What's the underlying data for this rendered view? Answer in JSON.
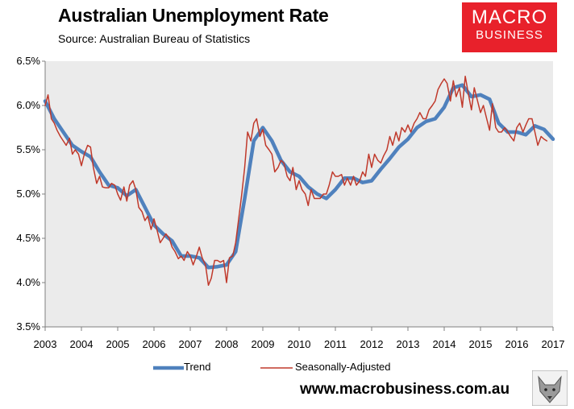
{
  "header": {
    "title": "Australian Unemployment Rate",
    "subtitle": "Source: Australian Bureau of Statistics"
  },
  "logo": {
    "line1": "MACRO",
    "line2": "BUSINESS",
    "color": "#e8212b"
  },
  "footer": {
    "website": "www.macrobusiness.com.au"
  },
  "chart_data": {
    "type": "line",
    "ylim": [
      3.5,
      6.5
    ],
    "xlim": [
      2003.0,
      2017.0
    ],
    "y_ticks": [
      "3.5%",
      "4.0%",
      "4.5%",
      "5.0%",
      "5.5%",
      "6.0%",
      "6.5%"
    ],
    "x_ticks": [
      "2003",
      "2004",
      "2005",
      "2006",
      "2007",
      "2008",
      "2009",
      "2010",
      "2011",
      "2012",
      "2013",
      "2014",
      "2015",
      "2016",
      "2017"
    ],
    "grid": false,
    "plot_background": "#ebebeb",
    "legend_position": "bottom",
    "series": [
      {
        "name": "Trend",
        "color": "#4f81bd",
        "points": [
          [
            2003.0,
            6.05
          ],
          [
            2003.25,
            5.85
          ],
          [
            2003.5,
            5.7
          ],
          [
            2003.75,
            5.55
          ],
          [
            2004.0,
            5.48
          ],
          [
            2004.25,
            5.42
          ],
          [
            2004.5,
            5.25
          ],
          [
            2004.75,
            5.1
          ],
          [
            2005.0,
            5.07
          ],
          [
            2005.25,
            4.98
          ],
          [
            2005.5,
            5.05
          ],
          [
            2005.75,
            4.85
          ],
          [
            2006.0,
            4.65
          ],
          [
            2006.25,
            4.55
          ],
          [
            2006.5,
            4.47
          ],
          [
            2006.75,
            4.3
          ],
          [
            2007.0,
            4.3
          ],
          [
            2007.25,
            4.28
          ],
          [
            2007.5,
            4.17
          ],
          [
            2007.75,
            4.18
          ],
          [
            2008.0,
            4.2
          ],
          [
            2008.25,
            4.35
          ],
          [
            2008.5,
            4.95
          ],
          [
            2008.75,
            5.6
          ],
          [
            2009.0,
            5.75
          ],
          [
            2009.25,
            5.6
          ],
          [
            2009.5,
            5.38
          ],
          [
            2009.75,
            5.25
          ],
          [
            2010.0,
            5.2
          ],
          [
            2010.25,
            5.08
          ],
          [
            2010.5,
            5.0
          ],
          [
            2010.75,
            4.95
          ],
          [
            2011.0,
            5.05
          ],
          [
            2011.25,
            5.18
          ],
          [
            2011.5,
            5.18
          ],
          [
            2011.75,
            5.13
          ],
          [
            2012.0,
            5.15
          ],
          [
            2012.25,
            5.28
          ],
          [
            2012.5,
            5.4
          ],
          [
            2012.75,
            5.53
          ],
          [
            2013.0,
            5.62
          ],
          [
            2013.25,
            5.75
          ],
          [
            2013.5,
            5.82
          ],
          [
            2013.75,
            5.85
          ],
          [
            2014.0,
            5.98
          ],
          [
            2014.25,
            6.2
          ],
          [
            2014.5,
            6.23
          ],
          [
            2014.75,
            6.1
          ],
          [
            2015.0,
            6.12
          ],
          [
            2015.25,
            6.07
          ],
          [
            2015.5,
            5.8
          ],
          [
            2015.75,
            5.7
          ],
          [
            2016.0,
            5.7
          ],
          [
            2016.25,
            5.67
          ],
          [
            2016.5,
            5.77
          ],
          [
            2016.75,
            5.73
          ],
          [
            2017.0,
            5.62
          ]
        ]
      },
      {
        "name": "Seasonally-Adjusted",
        "color": "#c0392b",
        "points": [
          [
            2003.0,
            6.0
          ],
          [
            2003.08,
            6.12
          ],
          [
            2003.17,
            5.85
          ],
          [
            2003.25,
            5.8
          ],
          [
            2003.33,
            5.72
          ],
          [
            2003.42,
            5.65
          ],
          [
            2003.5,
            5.6
          ],
          [
            2003.58,
            5.55
          ],
          [
            2003.67,
            5.63
          ],
          [
            2003.75,
            5.45
          ],
          [
            2003.83,
            5.5
          ],
          [
            2003.92,
            5.45
          ],
          [
            2004.0,
            5.32
          ],
          [
            2004.08,
            5.45
          ],
          [
            2004.17,
            5.55
          ],
          [
            2004.25,
            5.53
          ],
          [
            2004.33,
            5.3
          ],
          [
            2004.42,
            5.12
          ],
          [
            2004.5,
            5.2
          ],
          [
            2004.58,
            5.08
          ],
          [
            2004.67,
            5.07
          ],
          [
            2004.75,
            5.07
          ],
          [
            2004.83,
            5.12
          ],
          [
            2004.92,
            5.1
          ],
          [
            2005.0,
            5.0
          ],
          [
            2005.08,
            4.93
          ],
          [
            2005.17,
            5.08
          ],
          [
            2005.25,
            4.92
          ],
          [
            2005.33,
            5.1
          ],
          [
            2005.42,
            5.15
          ],
          [
            2005.5,
            5.05
          ],
          [
            2005.58,
            4.85
          ],
          [
            2005.67,
            4.8
          ],
          [
            2005.75,
            4.7
          ],
          [
            2005.83,
            4.75
          ],
          [
            2005.92,
            4.6
          ],
          [
            2006.0,
            4.72
          ],
          [
            2006.08,
            4.6
          ],
          [
            2006.17,
            4.45
          ],
          [
            2006.25,
            4.5
          ],
          [
            2006.33,
            4.55
          ],
          [
            2006.42,
            4.5
          ],
          [
            2006.5,
            4.4
          ],
          [
            2006.58,
            4.35
          ],
          [
            2006.67,
            4.27
          ],
          [
            2006.75,
            4.3
          ],
          [
            2006.83,
            4.25
          ],
          [
            2006.92,
            4.35
          ],
          [
            2007.0,
            4.3
          ],
          [
            2007.08,
            4.2
          ],
          [
            2007.17,
            4.3
          ],
          [
            2007.25,
            4.4
          ],
          [
            2007.33,
            4.28
          ],
          [
            2007.42,
            4.2
          ],
          [
            2007.5,
            3.97
          ],
          [
            2007.58,
            4.05
          ],
          [
            2007.67,
            4.25
          ],
          [
            2007.75,
            4.25
          ],
          [
            2007.83,
            4.23
          ],
          [
            2007.92,
            4.25
          ],
          [
            2008.0,
            4.0
          ],
          [
            2008.08,
            4.28
          ],
          [
            2008.17,
            4.3
          ],
          [
            2008.25,
            4.45
          ],
          [
            2008.33,
            4.7
          ],
          [
            2008.42,
            5.0
          ],
          [
            2008.5,
            5.3
          ],
          [
            2008.58,
            5.7
          ],
          [
            2008.67,
            5.6
          ],
          [
            2008.75,
            5.8
          ],
          [
            2008.83,
            5.85
          ],
          [
            2008.92,
            5.65
          ],
          [
            2009.0,
            5.73
          ],
          [
            2009.08,
            5.55
          ],
          [
            2009.17,
            5.5
          ],
          [
            2009.25,
            5.45
          ],
          [
            2009.33,
            5.25
          ],
          [
            2009.42,
            5.3
          ],
          [
            2009.5,
            5.38
          ],
          [
            2009.58,
            5.35
          ],
          [
            2009.67,
            5.2
          ],
          [
            2009.75,
            5.15
          ],
          [
            2009.83,
            5.3
          ],
          [
            2009.92,
            5.05
          ],
          [
            2010.0,
            5.15
          ],
          [
            2010.08,
            5.05
          ],
          [
            2010.17,
            5.0
          ],
          [
            2010.25,
            4.87
          ],
          [
            2010.33,
            5.05
          ],
          [
            2010.42,
            4.95
          ],
          [
            2010.5,
            4.95
          ],
          [
            2010.58,
            4.95
          ],
          [
            2010.67,
            5.0
          ],
          [
            2010.75,
            5.0
          ],
          [
            2010.83,
            5.1
          ],
          [
            2010.92,
            5.25
          ],
          [
            2011.0,
            5.2
          ],
          [
            2011.08,
            5.2
          ],
          [
            2011.17,
            5.22
          ],
          [
            2011.25,
            5.1
          ],
          [
            2011.33,
            5.18
          ],
          [
            2011.42,
            5.1
          ],
          [
            2011.5,
            5.2
          ],
          [
            2011.58,
            5.1
          ],
          [
            2011.67,
            5.15
          ],
          [
            2011.75,
            5.25
          ],
          [
            2011.83,
            5.2
          ],
          [
            2011.92,
            5.45
          ],
          [
            2012.0,
            5.3
          ],
          [
            2012.08,
            5.45
          ],
          [
            2012.17,
            5.38
          ],
          [
            2012.25,
            5.35
          ],
          [
            2012.33,
            5.43
          ],
          [
            2012.42,
            5.5
          ],
          [
            2012.5,
            5.65
          ],
          [
            2012.58,
            5.55
          ],
          [
            2012.67,
            5.7
          ],
          [
            2012.75,
            5.6
          ],
          [
            2012.83,
            5.75
          ],
          [
            2012.92,
            5.7
          ],
          [
            2013.0,
            5.78
          ],
          [
            2013.08,
            5.7
          ],
          [
            2013.17,
            5.8
          ],
          [
            2013.25,
            5.85
          ],
          [
            2013.33,
            5.92
          ],
          [
            2013.42,
            5.85
          ],
          [
            2013.5,
            5.85
          ],
          [
            2013.58,
            5.95
          ],
          [
            2013.67,
            6.0
          ],
          [
            2013.75,
            6.05
          ],
          [
            2013.83,
            6.18
          ],
          [
            2013.92,
            6.25
          ],
          [
            2014.0,
            6.3
          ],
          [
            2014.08,
            6.25
          ],
          [
            2014.17,
            6.05
          ],
          [
            2014.25,
            6.28
          ],
          [
            2014.33,
            6.1
          ],
          [
            2014.42,
            6.2
          ],
          [
            2014.5,
            5.98
          ],
          [
            2014.58,
            6.33
          ],
          [
            2014.67,
            6.12
          ],
          [
            2014.75,
            5.95
          ],
          [
            2014.83,
            6.2
          ],
          [
            2014.92,
            6.05
          ],
          [
            2015.0,
            5.92
          ],
          [
            2015.08,
            6.0
          ],
          [
            2015.17,
            5.85
          ],
          [
            2015.25,
            5.72
          ],
          [
            2015.33,
            6.02
          ],
          [
            2015.42,
            5.75
          ],
          [
            2015.5,
            5.7
          ],
          [
            2015.58,
            5.7
          ],
          [
            2015.67,
            5.75
          ],
          [
            2015.75,
            5.7
          ],
          [
            2015.83,
            5.65
          ],
          [
            2015.92,
            5.6
          ],
          [
            2016.0,
            5.75
          ],
          [
            2016.08,
            5.8
          ],
          [
            2016.17,
            5.7
          ],
          [
            2016.25,
            5.78
          ],
          [
            2016.33,
            5.85
          ],
          [
            2016.42,
            5.85
          ],
          [
            2016.5,
            5.7
          ],
          [
            2016.58,
            5.55
          ],
          [
            2016.67,
            5.65
          ],
          [
            2016.75,
            5.62
          ],
          [
            2016.83,
            5.6
          ]
        ]
      }
    ]
  }
}
